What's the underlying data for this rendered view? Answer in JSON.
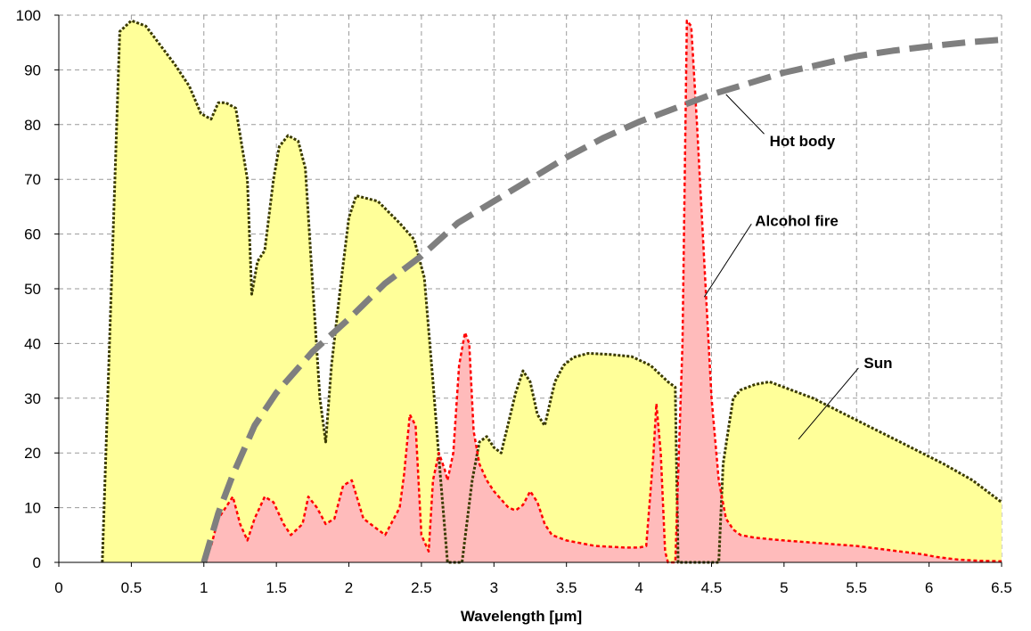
{
  "chart_data": {
    "type": "area",
    "title": "",
    "xlabel": "Wavelength [μm]",
    "ylabel": "",
    "xlim": [
      0,
      6.5
    ],
    "ylim": [
      0,
      100
    ],
    "grid": true,
    "x_ticks": [
      "0",
      "0.5",
      "1",
      "1.5",
      "2",
      "2.5",
      "3",
      "3.5",
      "4",
      "4.5",
      "5",
      "5.5",
      "6",
      "6.5"
    ],
    "y_ticks": [
      "0",
      "10",
      "20",
      "30",
      "40",
      "50",
      "60",
      "70",
      "80",
      "90",
      "100"
    ],
    "series": [
      {
        "name": "Sun",
        "style": "filled area, dark dotted outline",
        "fill": "#ffff99",
        "line": "#3a3a00",
        "x": [
          0.3,
          0.42,
          0.5,
          0.6,
          0.8,
          0.9,
          0.98,
          1.05,
          1.1,
          1.15,
          1.22,
          1.3,
          1.33,
          1.37,
          1.42,
          1.48,
          1.52,
          1.58,
          1.65,
          1.7,
          1.74,
          1.8,
          1.84,
          1.88,
          1.94,
          2.0,
          2.05,
          2.2,
          2.35,
          2.45,
          2.52,
          2.58,
          2.63,
          2.68,
          2.72,
          2.75,
          2.78,
          2.85,
          2.9,
          2.95,
          3.0,
          3.05,
          3.15,
          3.2,
          3.25,
          3.3,
          3.35,
          3.42,
          3.48,
          3.55,
          3.65,
          3.8,
          3.95,
          4.08,
          4.2,
          4.25,
          4.27,
          4.3,
          4.55,
          4.58,
          4.62,
          4.65,
          4.7,
          4.8,
          4.9,
          5.0,
          5.2,
          5.5,
          5.8,
          6.1,
          6.3,
          6.5
        ],
        "y": [
          0,
          97,
          99,
          98,
          91,
          87,
          82,
          81,
          84,
          84,
          83,
          70,
          49,
          55,
          57,
          70,
          76,
          78,
          77,
          72,
          55,
          30,
          22,
          36,
          50,
          63,
          67,
          66,
          62,
          59,
          52,
          33,
          16,
          0,
          0,
          0,
          0,
          15,
          22,
          23,
          21,
          20,
          31,
          35,
          33,
          27,
          25,
          33,
          36,
          37.5,
          38.2,
          38,
          37.6,
          36,
          33,
          32,
          0,
          0,
          0,
          18,
          25,
          30,
          31.5,
          32.5,
          33,
          32,
          30,
          26,
          22,
          18,
          15,
          11
        ]
      },
      {
        "name": "Alcohol fire",
        "style": "filled area, red dotted outline",
        "fill": "#ffbbbb",
        "line": "#ff0000",
        "x": [
          1.0,
          1.05,
          1.1,
          1.15,
          1.2,
          1.25,
          1.3,
          1.35,
          1.42,
          1.48,
          1.55,
          1.6,
          1.68,
          1.72,
          1.78,
          1.84,
          1.9,
          1.96,
          2.02,
          2.1,
          2.25,
          2.35,
          2.38,
          2.42,
          2.46,
          2.5,
          2.55,
          2.58,
          2.62,
          2.66,
          2.68,
          2.72,
          2.76,
          2.8,
          2.83,
          2.86,
          2.9,
          2.95,
          3.0,
          3.05,
          3.1,
          3.15,
          3.2,
          3.25,
          3.3,
          3.35,
          3.4,
          3.5,
          3.6,
          3.7,
          3.9,
          4.0,
          4.05,
          4.1,
          4.12,
          4.15,
          4.18,
          4.2,
          4.25,
          4.3,
          4.33,
          4.36,
          4.4,
          4.45,
          4.5,
          4.55,
          4.6,
          4.65,
          4.7,
          4.8,
          5.0,
          5.5,
          5.95,
          6.05,
          6.2,
          6.35,
          6.5
        ],
        "y": [
          0,
          3,
          8,
          10,
          12,
          7,
          4,
          8,
          12,
          11,
          7,
          5,
          7,
          12,
          10,
          7,
          8,
          14,
          15,
          8,
          5,
          10,
          16,
          27,
          25,
          5,
          2,
          15,
          20,
          17,
          15,
          20,
          36,
          42,
          40,
          24,
          18,
          15,
          13,
          11.5,
          10,
          9.5,
          10.5,
          13,
          11,
          7,
          5,
          4,
          3.5,
          3,
          2.7,
          2.7,
          3,
          20,
          29,
          20,
          2,
          0,
          0,
          40,
          99,
          98,
          80,
          55,
          30,
          15,
          8,
          6,
          5,
          4.5,
          4,
          3,
          1.5,
          1,
          0.5,
          0.3,
          0.2
        ]
      },
      {
        "name": "Hot body",
        "style": "thick gray dashed line",
        "line": "#7f7f7f",
        "x": [
          1.0,
          1.1,
          1.2,
          1.35,
          1.5,
          1.75,
          2.0,
          2.25,
          2.5,
          2.75,
          3.0,
          3.25,
          3.5,
          3.75,
          4.0,
          4.25,
          4.5,
          4.75,
          5.0,
          5.25,
          5.5,
          5.75,
          6.0,
          6.25,
          6.5
        ],
        "y": [
          0,
          9,
          16,
          25,
          31,
          38.5,
          44.5,
          51,
          56,
          62,
          66,
          70,
          74,
          77.5,
          80.5,
          83,
          85.5,
          87.5,
          89.5,
          91,
          92.5,
          93.5,
          94.3,
          95,
          95.5
        ]
      }
    ],
    "annotations": [
      {
        "text": "Hot body",
        "x": 4.9,
        "y": 77,
        "target_x": 4.6,
        "target_y": 85.5
      },
      {
        "text": "Alcohol fire",
        "x": 4.8,
        "y": 62.5,
        "target_x": 4.45,
        "target_y": 48.5
      },
      {
        "text": "Sun",
        "x": 5.55,
        "y": 36.5,
        "target_x": 5.1,
        "target_y": 22.5
      }
    ]
  }
}
